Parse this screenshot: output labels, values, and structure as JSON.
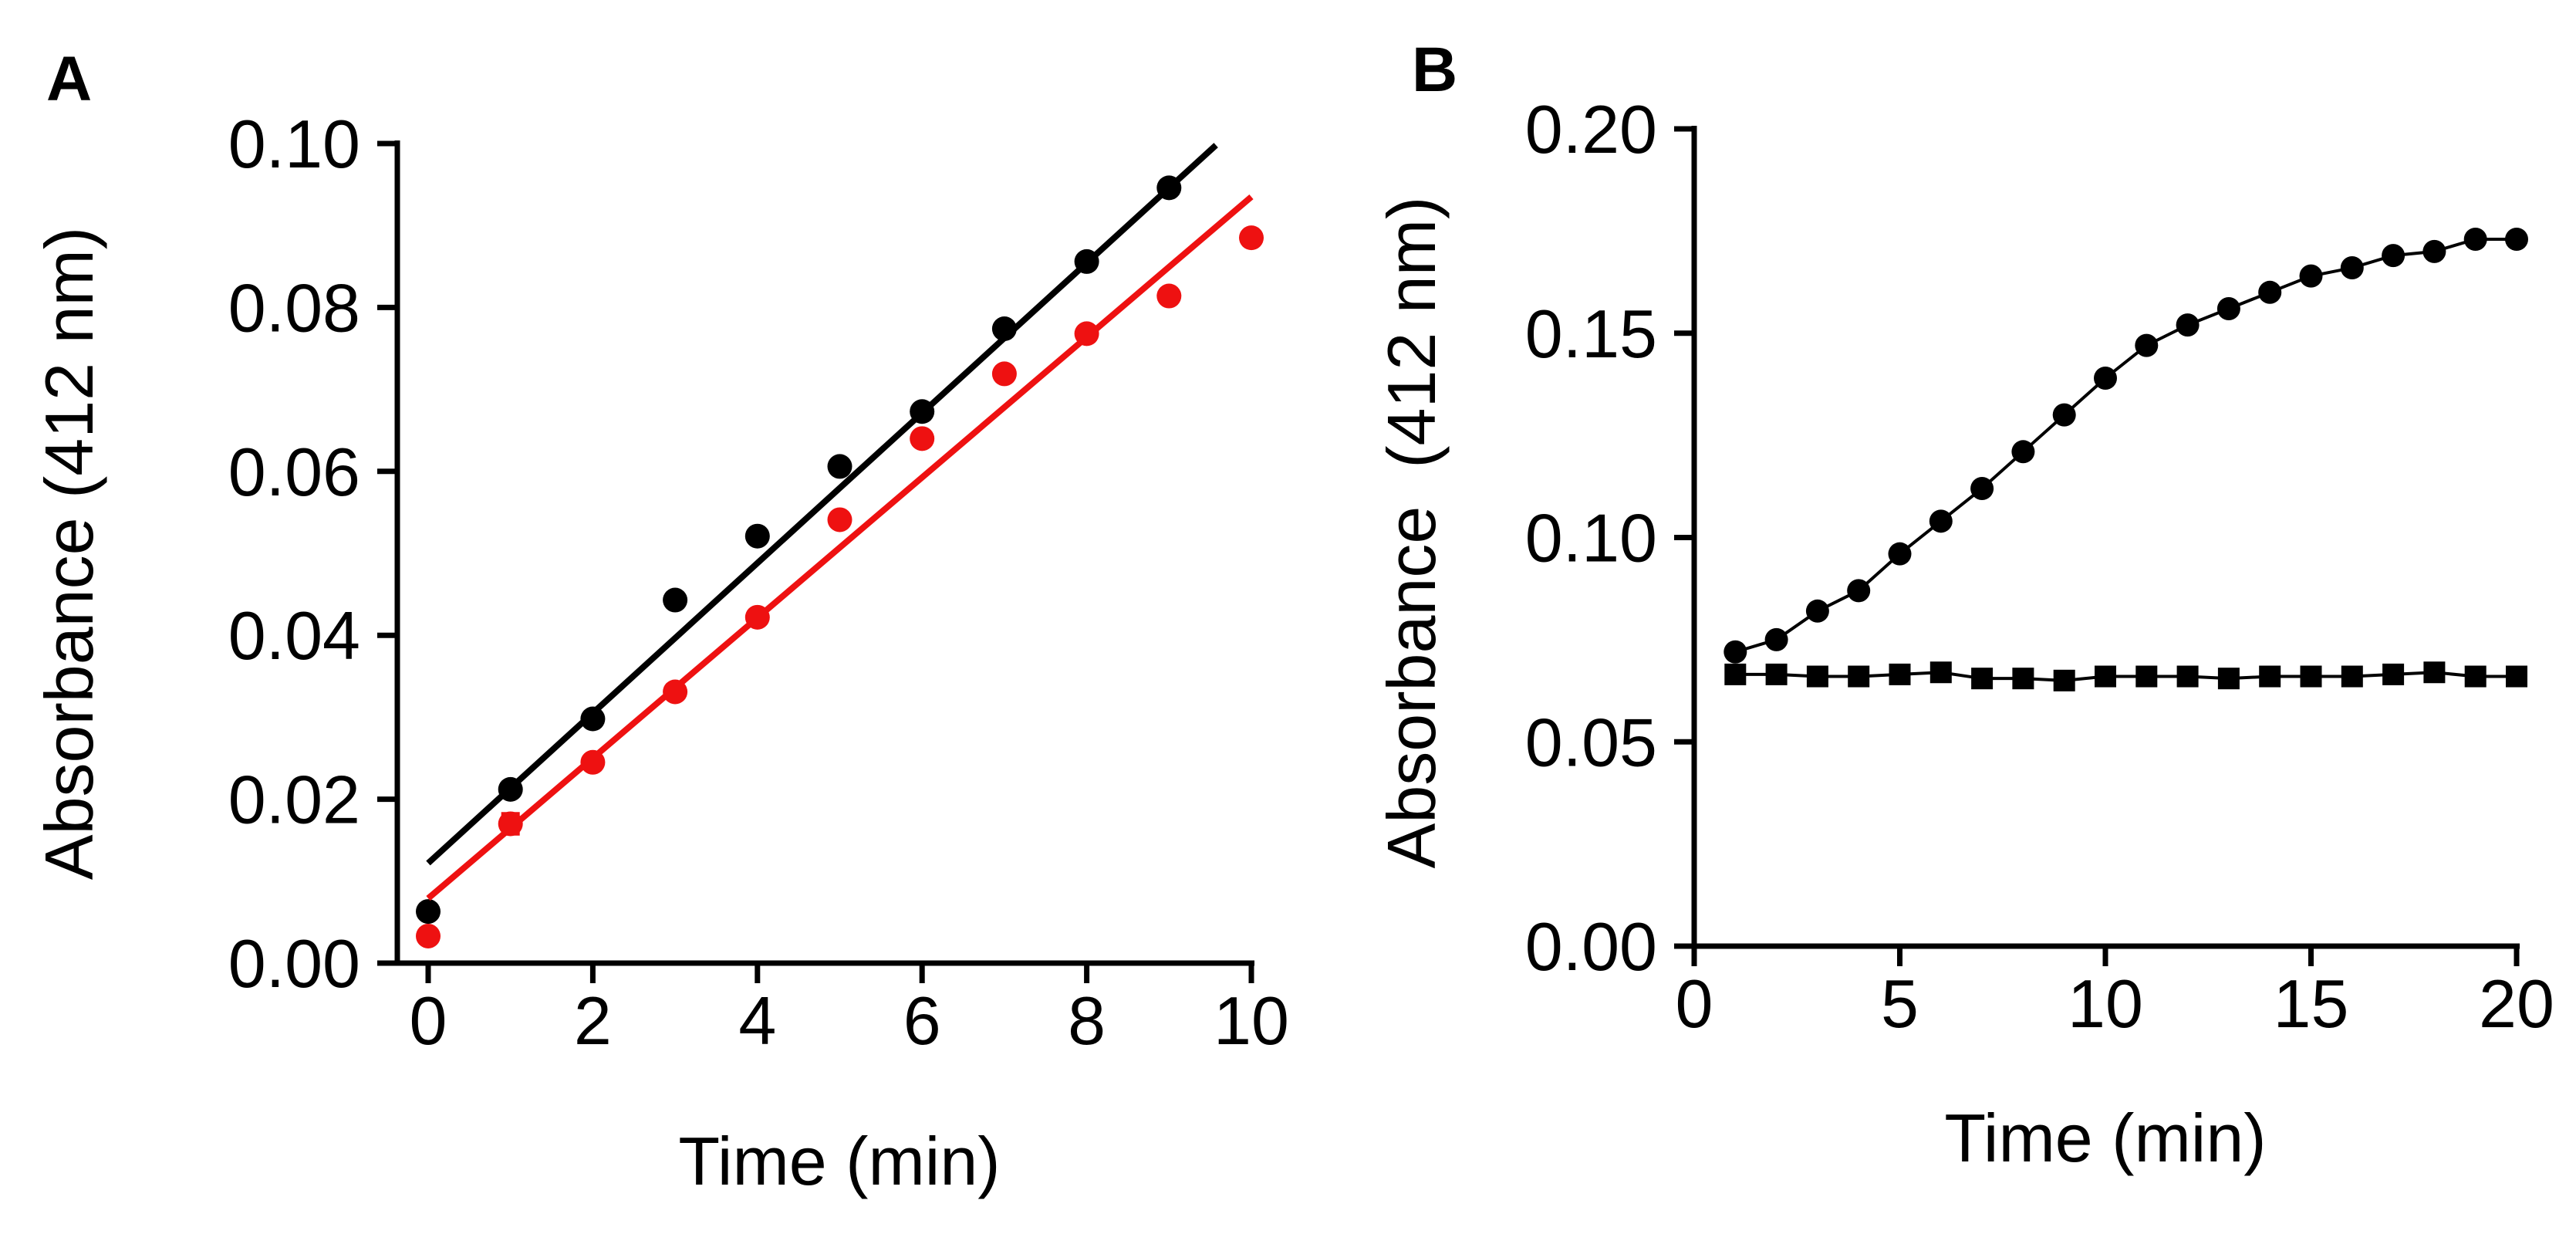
{
  "colors": {
    "black": "#000000",
    "red": "#ee1111"
  },
  "chart_data": [
    {
      "panel": "A",
      "type": "scatter",
      "xlabel": "Time (min)",
      "ylabel": "Absorbance (412 nm)",
      "xlim": [
        0,
        10
      ],
      "ylim": [
        0,
        0.1
      ],
      "xticks": [
        0,
        2,
        4,
        6,
        8,
        10
      ],
      "yticks": [
        0,
        0.02,
        0.04,
        0.06,
        0.08,
        0.1
      ],
      "xtick_labels": [
        "0",
        "2",
        "4",
        "6",
        "8",
        "10"
      ],
      "ytick_labels": [
        "0.00",
        "0.02",
        "0.04",
        "0.06",
        "0.08",
        "0.10"
      ],
      "grid": false,
      "series": [
        {
          "name": "black",
          "color": "#000000",
          "marker": "circle",
          "x": [
            0,
            1,
            2,
            3,
            4,
            5,
            6,
            7,
            8,
            9
          ],
          "y": [
            0.0063,
            0.0212,
            0.0298,
            0.0443,
            0.0521,
            0.0606,
            0.0673,
            0.0774,
            0.0856,
            0.0946
          ],
          "fit": {
            "x0": 0,
            "y0": 0.0122,
            "x1": 9.57,
            "y1": 0.0998
          }
        },
        {
          "name": "red",
          "color": "#ee1111",
          "marker": "circle",
          "x": [
            0,
            1,
            2,
            3,
            4,
            5,
            6,
            7,
            8,
            9,
            10
          ],
          "y": [
            0.0033,
            0.017,
            0.0245,
            0.0331,
            0.0422,
            0.0541,
            0.064,
            0.0719,
            0.0768,
            0.0814,
            0.0885
          ],
          "error": [
            0,
            0.0012,
            0,
            0,
            0,
            0,
            0,
            0,
            0,
            0,
            0
          ],
          "fit": {
            "x0": 0,
            "y0": 0.0079,
            "x1": 10,
            "y1": 0.0935
          }
        }
      ]
    },
    {
      "panel": "B",
      "type": "line",
      "xlabel": "Time (min)",
      "ylabel": "Absorbance  (412 nm)",
      "xlim": [
        0,
        20
      ],
      "ylim": [
        0,
        0.2
      ],
      "xticks": [
        0,
        5,
        10,
        15,
        20
      ],
      "yticks": [
        0,
        0.05,
        0.1,
        0.15,
        0.2
      ],
      "xtick_labels": [
        "0",
        "5",
        "10",
        "15",
        "20"
      ],
      "ytick_labels": [
        "0.00",
        "0.05",
        "0.10",
        "0.15",
        "0.20"
      ],
      "grid": false,
      "series": [
        {
          "name": "circles",
          "color": "#000000",
          "marker": "circle",
          "x": [
            1,
            2,
            3,
            4,
            5,
            6,
            7,
            8,
            9,
            10,
            11,
            12,
            13,
            14,
            15,
            16,
            17,
            18,
            19,
            20
          ],
          "y": [
            0.072,
            0.075,
            0.082,
            0.087,
            0.096,
            0.104,
            0.112,
            0.121,
            0.13,
            0.139,
            0.147,
            0.152,
            0.156,
            0.16,
            0.164,
            0.166,
            0.169,
            0.17,
            0.173,
            0.173
          ]
        },
        {
          "name": "squares",
          "color": "#000000",
          "marker": "square",
          "x": [
            1,
            2,
            3,
            4,
            5,
            6,
            7,
            8,
            9,
            10,
            11,
            12,
            13,
            14,
            15,
            16,
            17,
            18,
            19,
            20
          ],
          "y": [
            0.0665,
            0.0665,
            0.066,
            0.066,
            0.0665,
            0.067,
            0.0655,
            0.0655,
            0.065,
            0.066,
            0.066,
            0.066,
            0.0655,
            0.066,
            0.066,
            0.066,
            0.0665,
            0.067,
            0.066,
            0.066
          ]
        }
      ]
    }
  ]
}
